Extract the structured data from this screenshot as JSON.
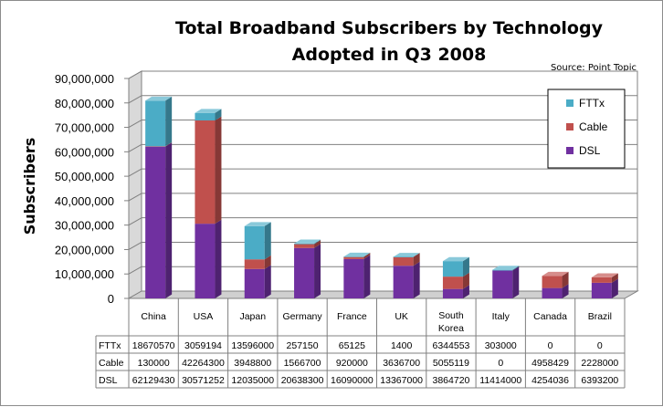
{
  "chart_data": {
    "type": "bar",
    "stacked": true,
    "title_line1": "Total Broadband Subscribers by Technology",
    "title_line2": "Adopted in Q3 2008",
    "source": "Source: Point Topic",
    "ylabel": "Subscribers",
    "ylim": [
      0,
      90000000
    ],
    "yticks": [
      "0",
      "10,000,000",
      "20,000,000",
      "30,000,000",
      "40,000,000",
      "50,000,000",
      "60,000,000",
      "70,000,000",
      "80,000,000",
      "90,000,000"
    ],
    "categories": [
      "China",
      "USA",
      "Japan",
      "Germany",
      "France",
      "UK",
      "South Korea",
      "Italy",
      "Canada",
      "Brazil"
    ],
    "series": [
      {
        "name": "DSL",
        "color": "#7030a0",
        "values": [
          62129430,
          30571252,
          12035000,
          20638300,
          16090000,
          13367000,
          3864720,
          11414000,
          4254036,
          6393200
        ]
      },
      {
        "name": "Cable",
        "color": "#c0504d",
        "values": [
          130000,
          42264300,
          3948800,
          1566700,
          920000,
          3636700,
          5055119,
          0,
          4958429,
          2228000
        ]
      },
      {
        "name": "FTTx",
        "color": "#4bacc6",
        "values": [
          18670570,
          3059194,
          13596000,
          257150,
          65125,
          1400,
          6344553,
          303000,
          0,
          0
        ]
      }
    ],
    "table_rows": [
      "FTTx",
      "Cable",
      "DSL"
    ],
    "legend_order": [
      "FTTx",
      "Cable",
      "DSL"
    ],
    "legend_position": "top-right",
    "grid": true
  }
}
